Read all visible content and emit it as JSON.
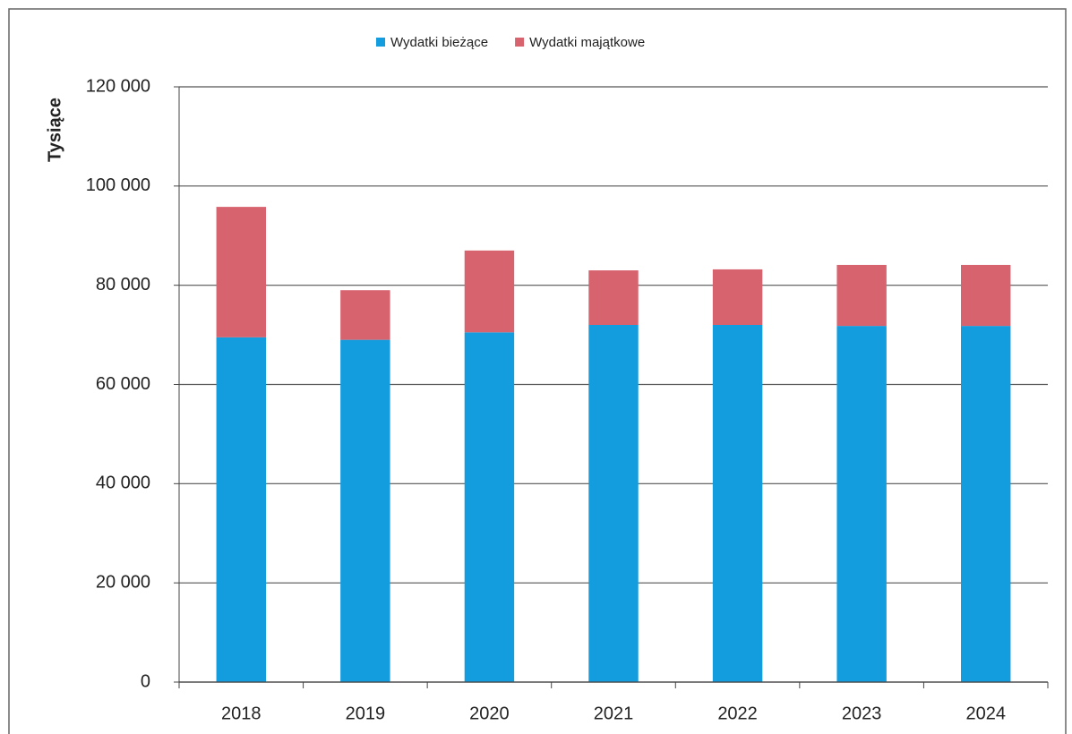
{
  "chart_data": {
    "type": "stacked_bar",
    "ylabel": "Tysiące",
    "categories": [
      "2018",
      "2019",
      "2020",
      "2021",
      "2022",
      "2023",
      "2024"
    ],
    "series": [
      {
        "name": "Wydatki bieżące",
        "color": "#139ddf",
        "values": [
          69500,
          69000,
          70500,
          72000,
          72000,
          71800,
          71800
        ]
      },
      {
        "name": "Wydatki majątkowe",
        "color": "#d7636f",
        "values": [
          26300,
          10000,
          16500,
          11000,
          11200,
          12300,
          12300
        ]
      }
    ],
    "ylim": [
      0,
      120000
    ],
    "yticks": [
      0,
      {
        "value": 20000,
        "label": "20 000"
      },
      {
        "value": 40000,
        "label": "40 000"
      },
      {
        "value": 60000,
        "label": "60 000"
      },
      {
        "value": 80000,
        "label": "80 000"
      },
      {
        "value": 100000,
        "label": "100 000"
      },
      {
        "value": 120000,
        "label": "120 000"
      }
    ],
    "grid": true,
    "legend": "top"
  }
}
